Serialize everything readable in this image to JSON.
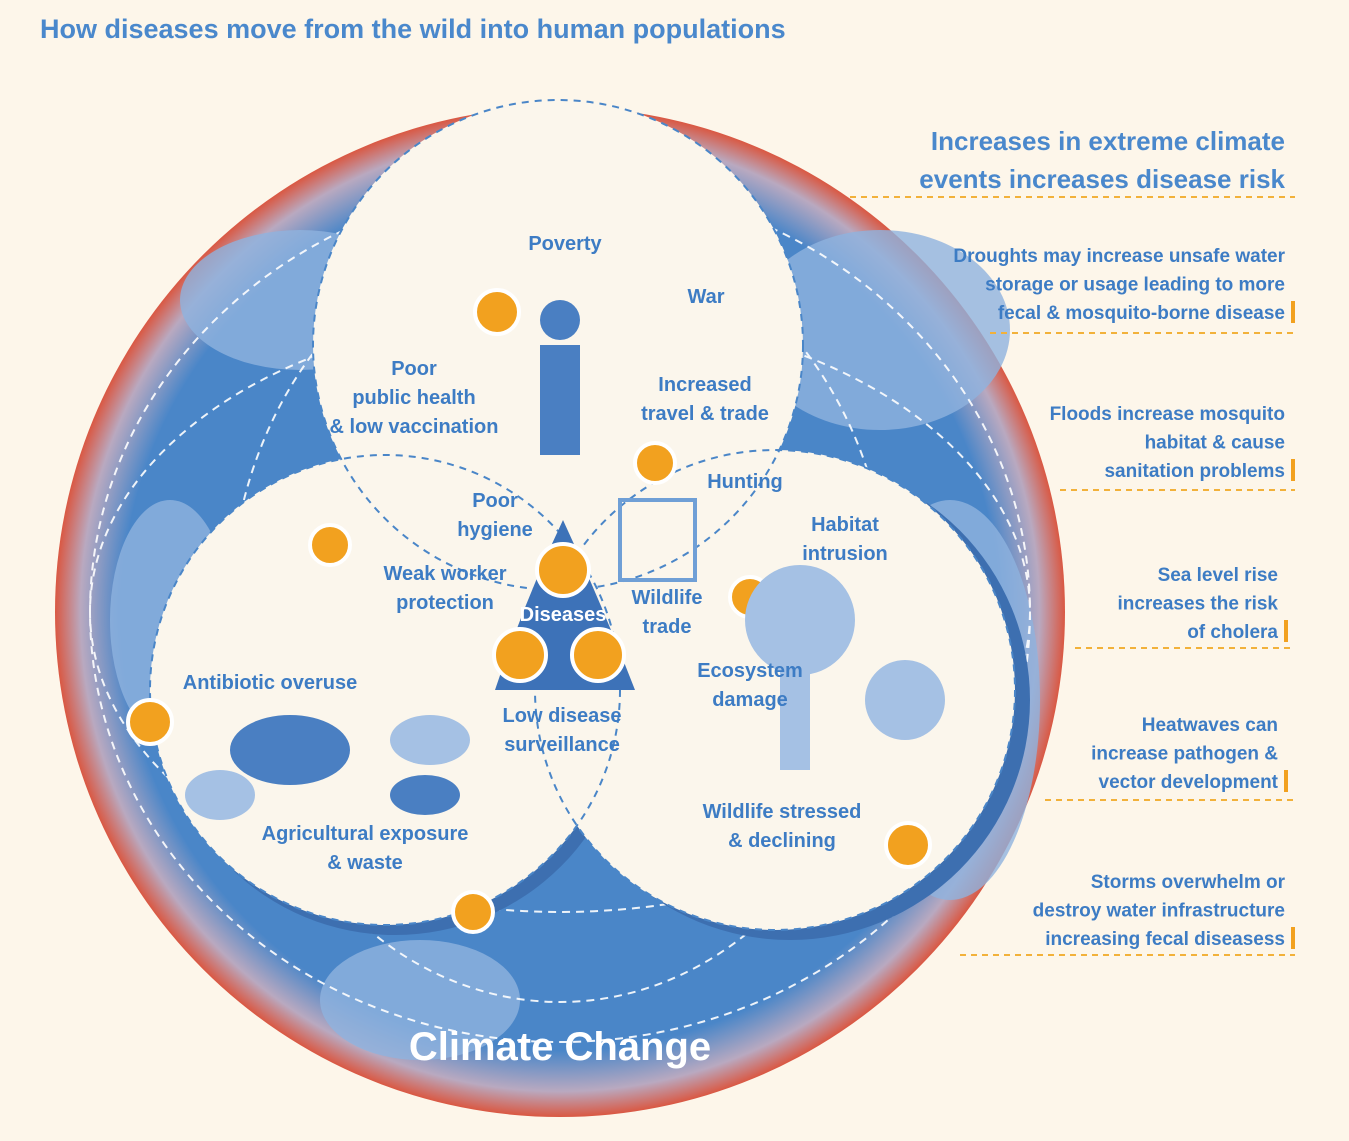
{
  "title": "How diseases move from the wild into human populations",
  "globe_label": "Climate Change",
  "climate_panel": {
    "heading": [
      "Increases in extreme climate",
      "events increases disease risk"
    ],
    "items": [
      [
        "Droughts may increase unsafe water",
        "storage or usage leading to more",
        "fecal & mosquito-borne disease"
      ],
      [
        "Floods increase mosquito",
        "habitat & cause",
        "sanitation problems"
      ],
      [
        "Sea level rise",
        "increases the risk",
        "of cholera"
      ],
      [
        "Heatwaves can",
        "increase pathogen &",
        "vector development"
      ],
      [
        "Storms overwhelm or",
        "destroy water infrastructure",
        "increasing fecal diseasess"
      ]
    ]
  },
  "human_circle": {
    "labels": [
      [
        "Poverty"
      ],
      [
        "War"
      ],
      [
        "Poor",
        "public health",
        "& low vaccination"
      ],
      [
        "Increased",
        "travel & trade"
      ]
    ]
  },
  "overlaps": {
    "labels": [
      [
        "Poor",
        "hygiene"
      ],
      [
        "Weak worker",
        "protection"
      ],
      [
        "Hunting"
      ],
      [
        "Wildlife",
        "trade"
      ],
      [
        "Low disease",
        "surveillance"
      ]
    ]
  },
  "agriculture_circle": {
    "labels": [
      [
        "Antibiotic overuse"
      ],
      [
        "Agricultural exposure",
        "& waste"
      ]
    ]
  },
  "wildlife_circle": {
    "labels": [
      [
        "Habitat",
        "intrusion"
      ],
      [
        "Ecosystem",
        "damage"
      ],
      [
        "Wildlife stressed",
        "& declining"
      ]
    ]
  },
  "center": "Diseases"
}
